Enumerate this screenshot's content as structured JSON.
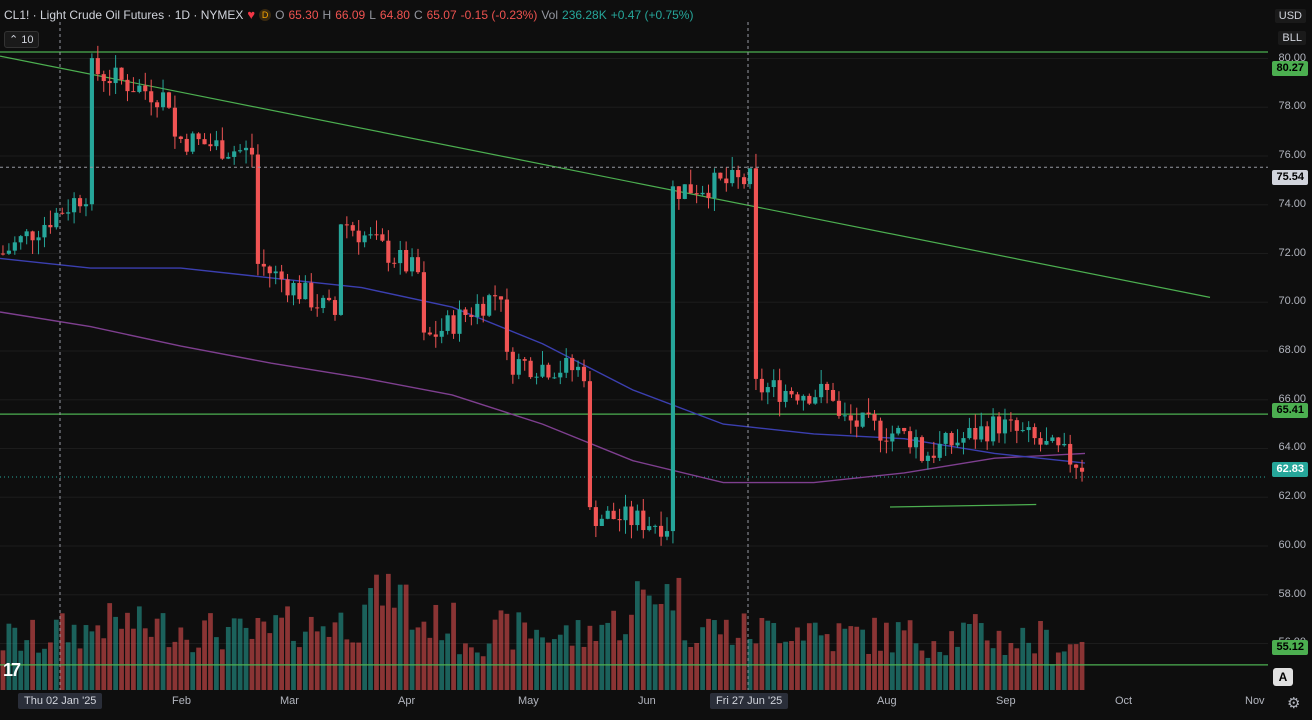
{
  "header": {
    "symbol_title": "CL1! · Light Crude Oil Futures · 1D · NYMEX",
    "heart_icon": "heart-icon",
    "d_badge": "D",
    "o_label": "O",
    "o_value": "65.30",
    "h_label": "H",
    "h_value": "66.09",
    "l_label": "L",
    "l_value": "64.80",
    "c_label": "C",
    "c_value": "65.07",
    "change": "-0.15 (-0.23%)",
    "vol_label": "Vol",
    "vol_value": "236.28K",
    "vol_change": "+0.47 (+0.75%)",
    "indicator_toggle": "10"
  },
  "top_right": {
    "currency": "USD",
    "unit": "BLL"
  },
  "price_axis": {
    "ticks": [
      "80.00",
      "78.00",
      "76.00",
      "74.00",
      "72.00",
      "70.00",
      "68.00",
      "66.00",
      "64.00",
      "62.00",
      "60.00",
      "58.00",
      "56.00"
    ]
  },
  "price_tags": {
    "resistance_top": "80.27",
    "crosshair": "75.54",
    "support_mid": "65.41",
    "last_price": "62.83",
    "support_low": "55.12"
  },
  "time_axis": {
    "labels": [
      "Feb",
      "Mar",
      "Apr",
      "May",
      "Jun",
      "Aug",
      "Sep",
      "Oct",
      "Nov"
    ],
    "left_cursor": "Thu 02 Jan '25",
    "crosshair": "Fri 27 Jun '25"
  },
  "controls": {
    "auto_scale": "A",
    "settings_icon": "gear-icon"
  },
  "colors": {
    "up": "#26a69a",
    "down": "#f05454",
    "hline": "#4caf50",
    "trendline": "#4caf50",
    "ma_long": "#7e3f8f",
    "ma_short": "#3b3fb0",
    "bg": "#0e0e0e"
  },
  "chart_data": {
    "type": "candlestick",
    "title": "CL1! · Light Crude Oil Futures · 1D · NYMEX",
    "ylim": [
      54.5,
      81.5
    ],
    "price_ticks": [
      80,
      78,
      76,
      74,
      72,
      70,
      68,
      66,
      64,
      62,
      60,
      58,
      56
    ],
    "months": [
      "Feb",
      "Mar",
      "Apr",
      "May",
      "Jun",
      "Aug",
      "Sep",
      "Oct",
      "Nov"
    ],
    "horizontal_lines": [
      80.27,
      65.41,
      55.12
    ],
    "last_price": 62.83,
    "trend_anchors": [
      72.0,
      79.6,
      76.8,
      71.7,
      73.5,
      68.3,
      67.6,
      61.3,
      74.6,
      66.5,
      65.2,
      63.7,
      64.9
    ],
    "trend_slopes": [
      0.18,
      -0.09,
      -0.05,
      -0.16,
      -0.17,
      0.16,
      -0.03,
      -0.03,
      0.03,
      -0.02,
      -0.06,
      0.1,
      -0.12
    ],
    "trend_noise": 0.55,
    "volume_profile": [
      0.35,
      0.45,
      0.55,
      0.5,
      0.45,
      0.4,
      0.5,
      0.55,
      0.9,
      0.55,
      0.4,
      0.45,
      0.4,
      0.55,
      0.9,
      0.5,
      0.45,
      0.5,
      0.4,
      0.4,
      0.38,
      0.42,
      0.35,
      0.3
    ],
    "ma_long": [
      69.6,
      69.0,
      68.2,
      67.5,
      66.9,
      66.2,
      65.0,
      63.5,
      62.6,
      62.6,
      63.0,
      63.6,
      63.8
    ],
    "ma_short": [
      71.8,
      71.4,
      71.4,
      71.0,
      70.6,
      69.8,
      68.3,
      66.4,
      65.0,
      64.6,
      64.4,
      63.8,
      63.4
    ],
    "trendline": [
      [
        0.0,
        80.1
      ],
      [
        0.968,
        70.2
      ]
    ],
    "lower_support": [
      [
        0.712,
        61.6
      ],
      [
        0.829,
        61.7
      ]
    ],
    "candle_count": 183
  }
}
